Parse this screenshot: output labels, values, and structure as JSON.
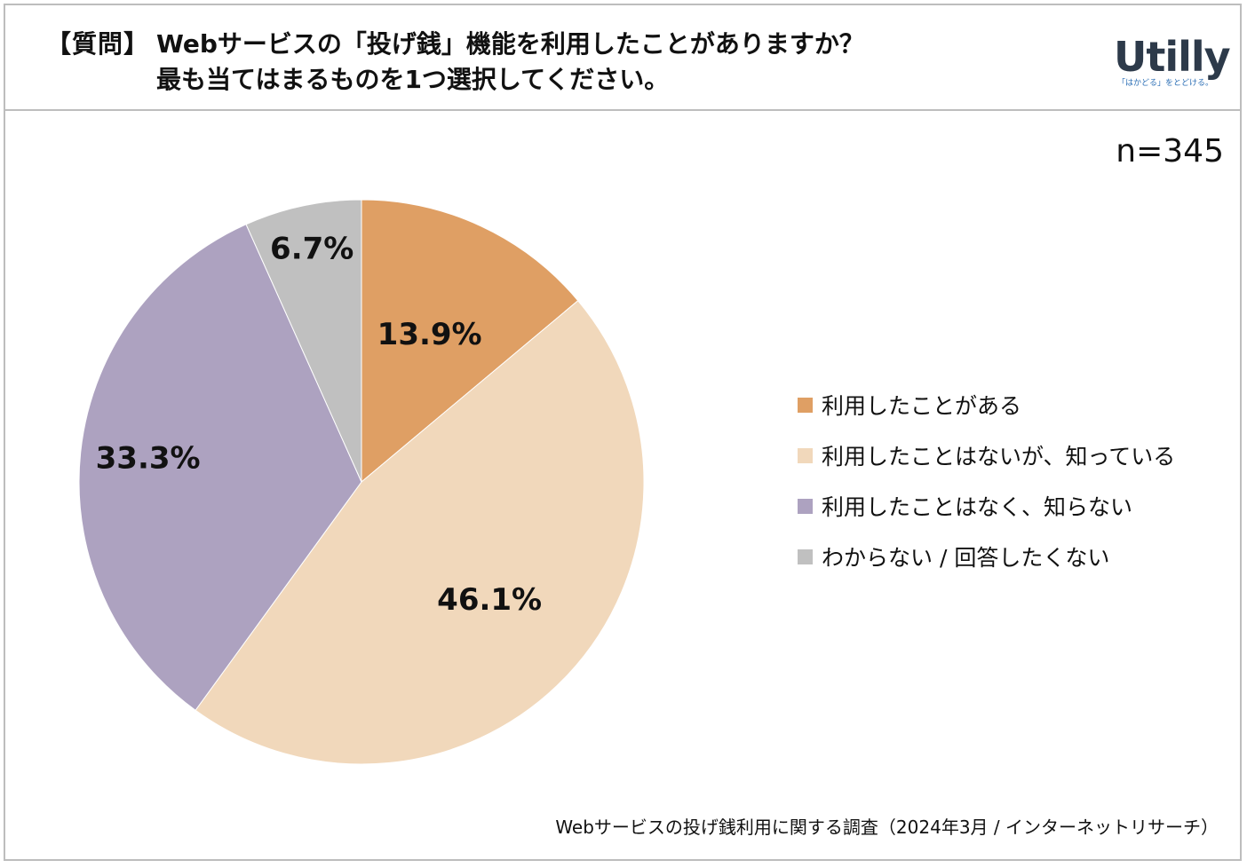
{
  "header": {
    "question_tag": "【質問】",
    "question_line1": "Webサービスの「投げ銭」機能を利用したことがありますか？",
    "question_line2": "最も当てはまるものを1つ選択してください。"
  },
  "logo": {
    "wordmark": "Utilly",
    "tagline": "「はかどる」をとどける。"
  },
  "sample_size": "n=345",
  "chart_data": {
    "type": "pie",
    "start_angle_deg": 0,
    "direction": "clockwise",
    "slices": [
      {
        "label": "利用したことがある",
        "value": 13.9,
        "display": "13.9%",
        "color": "#df9f64"
      },
      {
        "label": "利用したことはないが、知っている",
        "value": 46.1,
        "display": "46.1%",
        "color": "#f1d8bb"
      },
      {
        "label": "利用したことはなく、知らない",
        "value": 33.3,
        "display": "33.3%",
        "color": "#ada2c0"
      },
      {
        "label": "わからない / 回答したくない",
        "value": 6.7,
        "display": "6.7%",
        "color": "#c0c0c0"
      }
    ],
    "legend_position": "right"
  },
  "source": "Webサービスの投げ銭利用に関する調査（2024年3月 / インターネットリサーチ）"
}
